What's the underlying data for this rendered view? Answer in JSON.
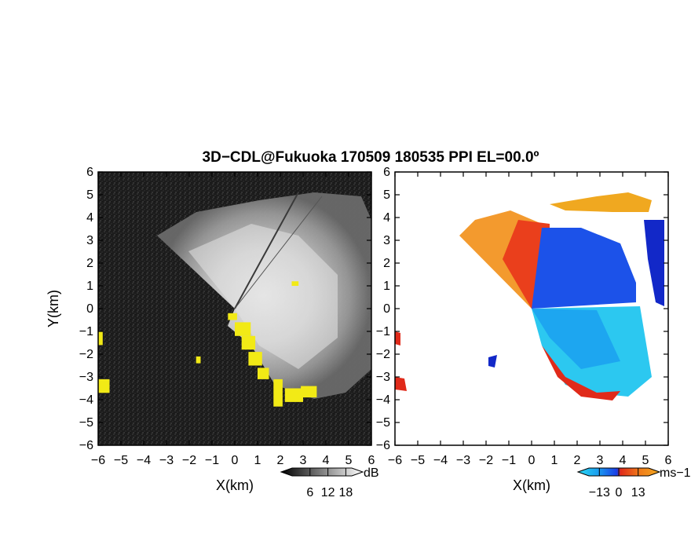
{
  "title": "3D−CDL@Fukuoka 170509 180535 PPI EL=00.0º",
  "chart_data": [
    {
      "type": "heatmap",
      "panel": "left",
      "xlabel": "X(km)",
      "ylabel": "Y(km)",
      "xlim": [
        -6,
        6
      ],
      "ylim": [
        -6,
        6
      ],
      "xticks": [
        "−6",
        "−5",
        "−4",
        "−3",
        "−2",
        "−1",
        "0",
        "1",
        "2",
        "3",
        "4",
        "5",
        "6"
      ],
      "yticks": [
        "6",
        "5",
        "4",
        "3",
        "2",
        "1",
        "0",
        "−1",
        "−2",
        "−3",
        "−4",
        "−5",
        "−6"
      ],
      "colorbar": {
        "unit": "dB",
        "ticks": [
          "6",
          "12",
          "18"
        ],
        "tick_values": [
          6,
          12,
          18
        ],
        "range": [
          0,
          20
        ],
        "colors": [
          "#000000",
          "#ffffff"
        ]
      },
      "highlight_color": "#f2ea16",
      "highlight_regions": [
        {
          "x": -0.3,
          "y": -0.5,
          "w": 0.4,
          "h": 0.3
        },
        {
          "x": 0.0,
          "y": -1.2,
          "w": 0.7,
          "h": 0.6
        },
        {
          "x": 0.3,
          "y": -1.8,
          "w": 0.6,
          "h": 0.6
        },
        {
          "x": 0.6,
          "y": -2.5,
          "w": 0.6,
          "h": 0.6
        },
        {
          "x": 1.0,
          "y": -3.1,
          "w": 0.5,
          "h": 0.5
        },
        {
          "x": 1.7,
          "y": -4.3,
          "w": 0.4,
          "h": 1.2
        },
        {
          "x": 2.2,
          "y": -4.1,
          "w": 0.8,
          "h": 0.6
        },
        {
          "x": 2.9,
          "y": -3.9,
          "w": 0.7,
          "h": 0.5
        },
        {
          "x": -6.0,
          "y": -1.6,
          "w": 0.2,
          "h": 0.6
        },
        {
          "x": -6.0,
          "y": -3.7,
          "w": 0.5,
          "h": 0.6
        },
        {
          "x": -1.7,
          "y": -2.4,
          "w": 0.2,
          "h": 0.3
        },
        {
          "x": 2.5,
          "y": 1.0,
          "w": 0.3,
          "h": 0.2
        }
      ]
    },
    {
      "type": "heatmap",
      "panel": "right",
      "xlabel": "X(km)",
      "ylabel": "",
      "xlim": [
        -6,
        6
      ],
      "ylim": [
        -6,
        6
      ],
      "xticks": [
        "−6",
        "−5",
        "−4",
        "−3",
        "−2",
        "−1",
        "0",
        "1",
        "2",
        "3",
        "4",
        "5",
        "6"
      ],
      "yticks": [
        "6",
        "5",
        "4",
        "3",
        "2",
        "1",
        "0",
        "−1",
        "−2",
        "−3",
        "−4",
        "−5",
        "−6"
      ],
      "colorbar": {
        "unit": "ms−1",
        "ticks": [
          "−13",
          "0",
          "13"
        ],
        "tick_values": [
          -13,
          0,
          13
        ],
        "range": [
          -20,
          20
        ],
        "colors": [
          "#2bd9f0",
          "#1a9df0",
          "#1a3ce6",
          "#e02a1a",
          "#f07a1a",
          "#f0a820"
        ]
      },
      "fields": [
        {
          "region": "north-west sector",
          "approx_velocity": 10,
          "color": "#f39a2e"
        },
        {
          "region": "near-north sector",
          "approx_velocity": 4,
          "color": "#ea3f1c"
        },
        {
          "region": "north-east sector",
          "approx_velocity": -8,
          "color": "#1c52e9"
        },
        {
          "region": "south-east sector",
          "approx_velocity": -14,
          "color": "#2cc8f0"
        },
        {
          "region": "edge returns",
          "approx_velocity": -5,
          "color": "#1228c8"
        }
      ]
    }
  ]
}
